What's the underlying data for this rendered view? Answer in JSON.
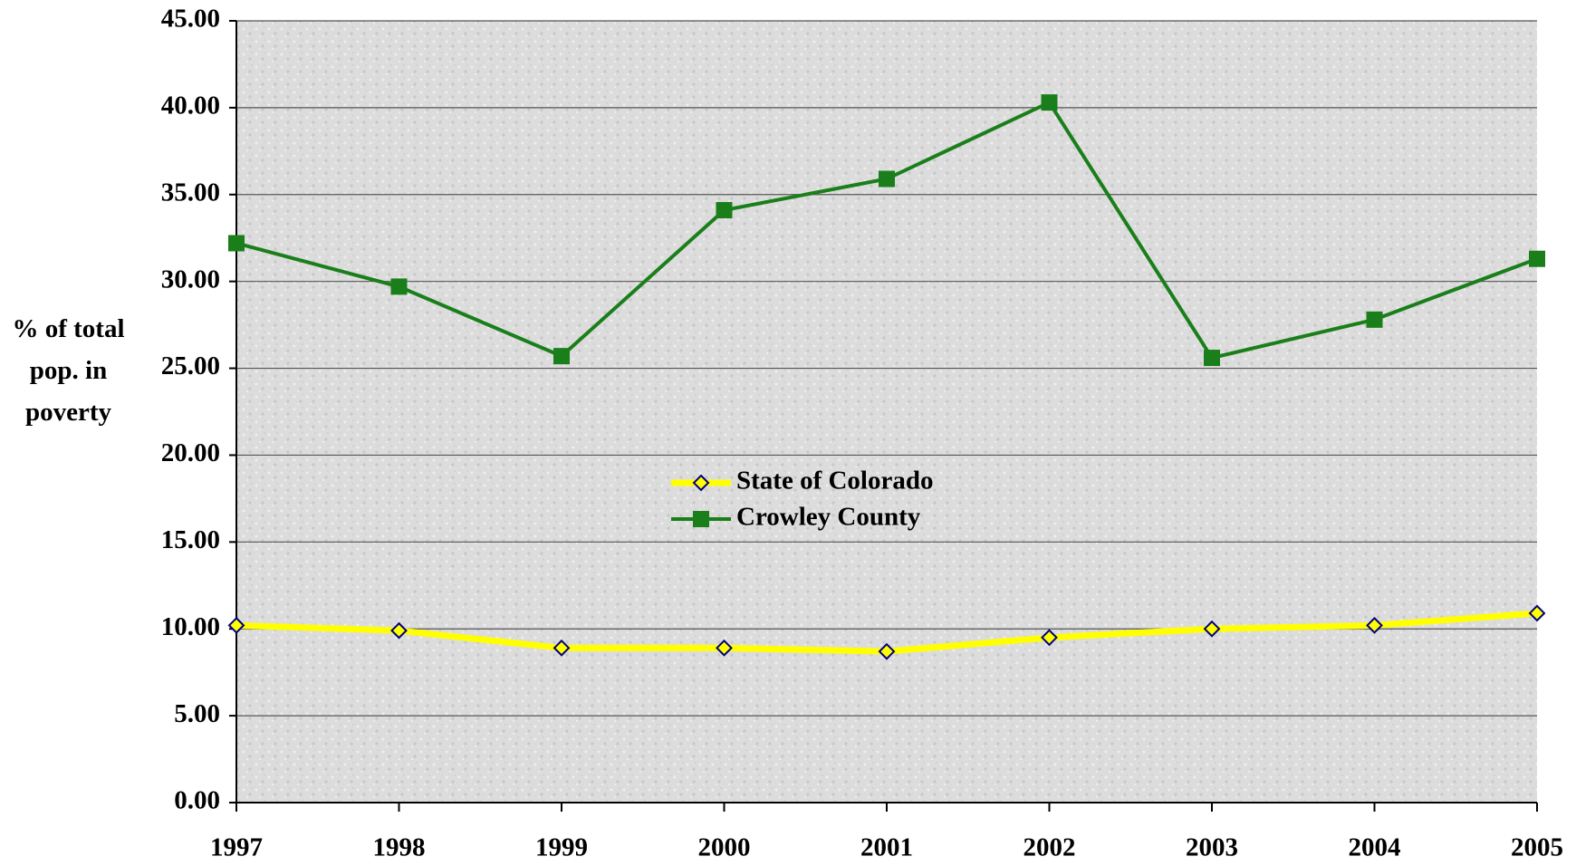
{
  "chart_data": {
    "type": "line",
    "ylabel": "% of total pop. in poverty",
    "categories": [
      "1997",
      "1998",
      "1999",
      "2000",
      "2001",
      "2002",
      "2003",
      "2004",
      "2005"
    ],
    "series": [
      {
        "name": "State of Colorado",
        "color": "#ffff00",
        "marker": "diamond",
        "values": [
          10.2,
          9.9,
          8.9,
          8.9,
          8.7,
          9.5,
          10.0,
          10.2,
          10.9
        ]
      },
      {
        "name": "Crowley County",
        "color": "#1a7f1a",
        "marker": "square",
        "values": [
          32.2,
          29.7,
          25.7,
          34.1,
          35.9,
          40.3,
          25.6,
          27.8,
          31.3
        ]
      }
    ],
    "ylim": [
      0,
      45
    ],
    "yticks": [
      {
        "value": 0,
        "label": "0.00"
      },
      {
        "value": 5,
        "label": "5.00"
      },
      {
        "value": 10,
        "label": "10.00"
      },
      {
        "value": 15,
        "label": "15.00"
      },
      {
        "value": 20,
        "label": "20.00"
      },
      {
        "value": 25,
        "label": "25.00"
      },
      {
        "value": 30,
        "label": "30.00"
      },
      {
        "value": 35,
        "label": "35.00"
      },
      {
        "value": 40,
        "label": "40.00"
      },
      {
        "value": 45,
        "label": "45.00"
      }
    ],
    "grid": true,
    "legend": "center"
  }
}
